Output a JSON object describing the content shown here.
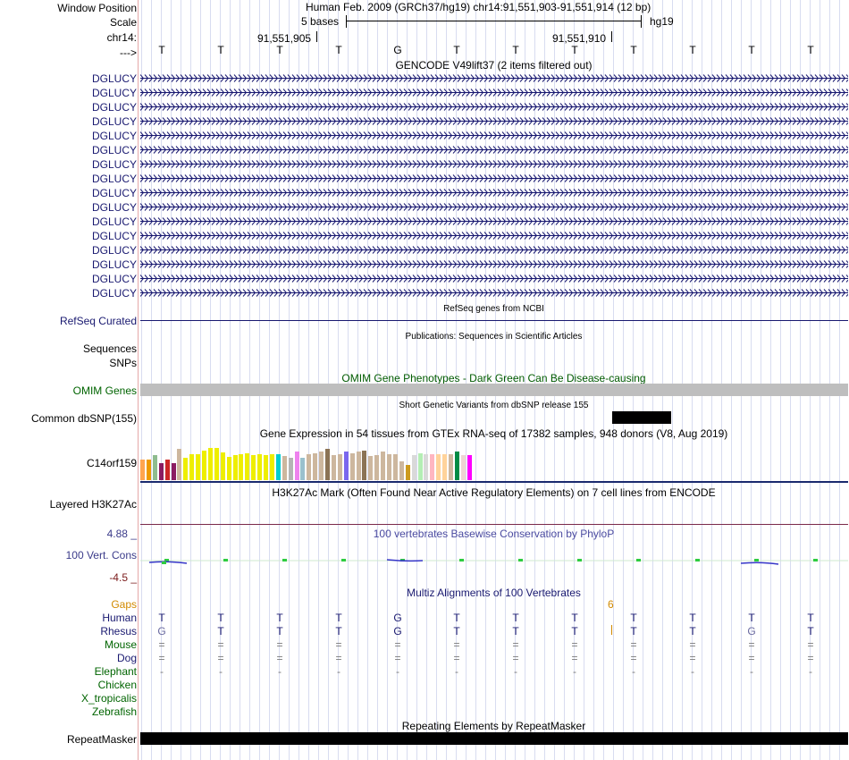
{
  "header": {
    "window_position_label": "Window Position",
    "window_position_value": "Human Feb. 2009 (GRCh37/hg19)   chr14:91,551,903-91,551,914 (12 bp)",
    "scale_label": "Scale",
    "scale_text": "5 bases",
    "scale_assembly": "hg19",
    "chrom_label": "chr14:",
    "coord_1": "91,551,905",
    "coord_2": "91,551,910",
    "strand_label": "--->"
  },
  "sequence": [
    "T",
    "T",
    "T",
    "T",
    "G",
    "T",
    "T",
    "T",
    "T",
    "T",
    "T",
    "T"
  ],
  "gencode": {
    "title": "GENCODE V49lift37 (2 items filtered out)",
    "items": [
      "DGLUCY",
      "DGLUCY",
      "DGLUCY",
      "DGLUCY",
      "DGLUCY",
      "DGLUCY",
      "DGLUCY",
      "DGLUCY",
      "DGLUCY",
      "DGLUCY",
      "DGLUCY",
      "DGLUCY",
      "DGLUCY",
      "DGLUCY",
      "DGLUCY",
      "DGLUCY"
    ],
    "color": "#191970"
  },
  "refseq": {
    "title": "RefSeq genes from NCBI",
    "label": "RefSeq Curated"
  },
  "publications": {
    "title": "Publications: Sequences in Scientific Articles",
    "label1": "Sequences",
    "label2": "SNPs"
  },
  "omim": {
    "title": "OMIM Gene Phenotypes - Dark Green Can Be Disease-causing",
    "label": "OMIM Genes",
    "bar_color": "#bebebe"
  },
  "dbsnp": {
    "title": "Short Genetic Variants from dbSNP release 155",
    "label": "Common dbSNP(155)"
  },
  "gtex": {
    "title": "Gene Expression in 54 tissues from GTEx RNA-seq of 17382 samples, 948 donors (V8, Aug 2019)",
    "label": "C14orf159",
    "bars": [
      {
        "color": "#ffa54f",
        "level": 0.5
      },
      {
        "color": "#ee9a00",
        "level": 0.5
      },
      {
        "color": "#8fbc8f",
        "level": 0.6
      },
      {
        "color": "#8b1c62",
        "level": 0.42
      },
      {
        "color": "#cd2626",
        "level": 0.5
      },
      {
        "color": "#8b1c62",
        "level": 0.42
      },
      {
        "color": "#cdb79e",
        "level": 0.75
      },
      {
        "color": "#eeee00",
        "level": 0.55
      },
      {
        "color": "#eeee00",
        "level": 0.63
      },
      {
        "color": "#eeee00",
        "level": 0.63
      },
      {
        "color": "#eeee00",
        "level": 0.72
      },
      {
        "color": "#eeee00",
        "level": 0.78
      },
      {
        "color": "#eeee00",
        "level": 0.78
      },
      {
        "color": "#eeee00",
        "level": 0.68
      },
      {
        "color": "#eeee00",
        "level": 0.57
      },
      {
        "color": "#eeee00",
        "level": 0.6
      },
      {
        "color": "#eeee00",
        "level": 0.63
      },
      {
        "color": "#eeee00",
        "level": 0.66
      },
      {
        "color": "#eeee00",
        "level": 0.6
      },
      {
        "color": "#eeee00",
        "level": 0.63
      },
      {
        "color": "#eeee00",
        "level": 0.6
      },
      {
        "color": "#eeee00",
        "level": 0.63
      },
      {
        "color": "#00ced1",
        "level": 0.63
      },
      {
        "color": "#cdb79e",
        "level": 0.58
      },
      {
        "color": "#b4b4b4",
        "level": 0.55
      },
      {
        "color": "#ee82ee",
        "level": 0.7
      },
      {
        "color": "#9ac0cd",
        "level": 0.55
      },
      {
        "color": "#cdb79e",
        "level": 0.62
      },
      {
        "color": "#cdb79e",
        "level": 0.66
      },
      {
        "color": "#cdb79e",
        "level": 0.7
      },
      {
        "color": "#8b7355",
        "level": 0.75
      },
      {
        "color": "#cdb79e",
        "level": 0.6
      },
      {
        "color": "#cdb79e",
        "level": 0.62
      },
      {
        "color": "#7a67ee",
        "level": 0.7
      },
      {
        "color": "#cdb79e",
        "level": 0.66
      },
      {
        "color": "#cdb79e",
        "level": 0.7
      },
      {
        "color": "#8b7355",
        "level": 0.72
      },
      {
        "color": "#cdb79e",
        "level": 0.58
      },
      {
        "color": "#cdb79e",
        "level": 0.6
      },
      {
        "color": "#cdb79e",
        "level": 0.7
      },
      {
        "color": "#cdb79e",
        "level": 0.62
      },
      {
        "color": "#cdb79e",
        "level": 0.62
      },
      {
        "color": "#cdb79e",
        "level": 0.45
      },
      {
        "color": "#cd9b1d",
        "level": 0.38
      },
      {
        "color": "#d9d9d9",
        "level": 0.6
      },
      {
        "color": "#b4eeb4",
        "level": 0.66
      },
      {
        "color": "#d9d9d9",
        "level": 0.62
      },
      {
        "color": "#ffb6c1",
        "level": 0.62
      },
      {
        "color": "#ffd39b",
        "level": 0.62
      },
      {
        "color": "#ffd39b",
        "level": 0.62
      },
      {
        "color": "#cdb79e",
        "level": 0.62
      },
      {
        "color": "#008b45",
        "level": 0.7
      },
      {
        "color": "#eed5d2",
        "level": 0.6
      },
      {
        "color": "#ff00ff",
        "level": 0.6
      }
    ]
  },
  "h3k27ac": {
    "title": "H3K27Ac Mark (Often Found Near Active Regulatory Elements) on 7 cell lines from ENCODE",
    "label": "Layered H3K27Ac"
  },
  "phylop": {
    "title": "100 vertebrates Basewise Conservation by PhyloP",
    "label": "100 Vert. Cons",
    "max": "4.88 _",
    "min": "-4.5 _"
  },
  "multiz": {
    "title": "Multiz Alignments of 100 Vertebrates",
    "gaps_label": "Gaps",
    "gap_count": "6",
    "species": [
      {
        "name": "Human",
        "color": "#191970",
        "bases": [
          "T",
          "T",
          "T",
          "T",
          "G",
          "T",
          "T",
          "T",
          "T",
          "T",
          "T",
          "T"
        ]
      },
      {
        "name": "Rhesus",
        "color": "#191970",
        "bases": [
          "G",
          "T",
          "T",
          "T",
          "G",
          "T",
          "T",
          "T",
          "T",
          "T",
          "G",
          "T"
        ]
      },
      {
        "name": "Mouse",
        "color": "#006400",
        "bases": [
          "=",
          "=",
          "=",
          "=",
          "=",
          "=",
          "=",
          "=",
          "=",
          "=",
          "=",
          "="
        ]
      },
      {
        "name": "Dog",
        "color": "#191970",
        "bases": [
          "=",
          "=",
          "=",
          "=",
          "=",
          "=",
          "=",
          "=",
          "=",
          "=",
          "=",
          "="
        ]
      },
      {
        "name": "Elephant",
        "color": "#006400",
        "bases": [
          "-",
          "-",
          "-",
          "-",
          "-",
          "-",
          "-",
          "-",
          "-",
          "-",
          "-",
          "-"
        ]
      },
      {
        "name": "Chicken",
        "color": "#006400",
        "bases": []
      },
      {
        "name": "X_tropicalis",
        "color": "#006400",
        "bases": []
      },
      {
        "name": "Zebrafish",
        "color": "#006400",
        "bases": []
      }
    ]
  },
  "repeatmasker": {
    "title": "Repeating Elements by RepeatMasker",
    "label": "RepeatMasker"
  }
}
